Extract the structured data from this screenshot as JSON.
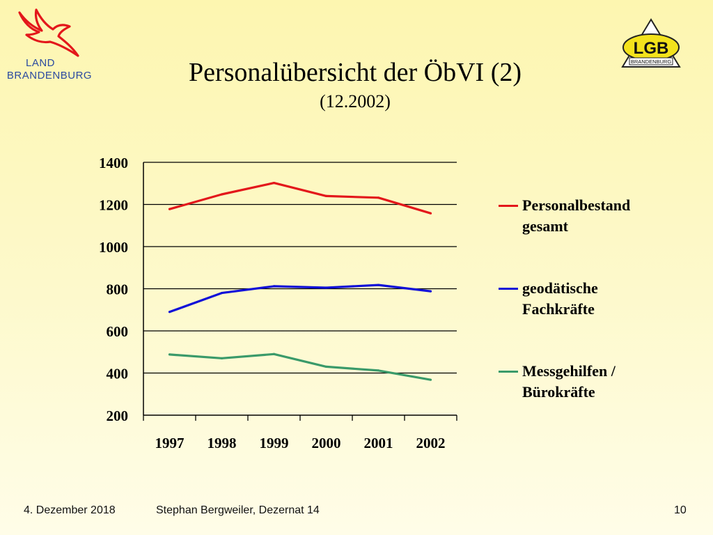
{
  "header": {
    "logo_left_line1": "LAND",
    "logo_left_line2": "BRANDENBURG",
    "logo_right_text": "LGB",
    "logo_right_subtext": "BRANDENBURG",
    "title": "Personalübersicht der ÖbVI (2)",
    "subtitle": "(12.2002)"
  },
  "colors": {
    "personal": "#e3171b",
    "geodaetisch": "#1010d8",
    "messgehilfen": "#3a9a6a",
    "eagle": "#e3171b",
    "brand_blue": "#2a4aa0",
    "lgb_yellow": "#f3e21c"
  },
  "chart_data": {
    "type": "line",
    "categories": [
      "1997",
      "1998",
      "1999",
      "2000",
      "2001",
      "2002"
    ],
    "ylim": [
      200,
      1400
    ],
    "yticks": [
      200,
      400,
      600,
      800,
      1000,
      1200,
      1400
    ],
    "grid": true,
    "legend_position": "right",
    "series": [
      {
        "name": "Personalbestand gesamt",
        "values": [
          1178,
          1248,
          1302,
          1240,
          1232,
          1158
        ],
        "color": "#e3171b"
      },
      {
        "name": "geodätische Fachkräfte",
        "values": [
          690,
          780,
          812,
          805,
          818,
          788
        ],
        "color": "#1010d8"
      },
      {
        "name": "Messgehilfen / Bürokräfte",
        "values": [
          488,
          470,
          490,
          430,
          412,
          368
        ],
        "color": "#3a9a6a"
      }
    ]
  },
  "legend": [
    {
      "label": "Personalbestand\ngesamt",
      "color": "#e3171b"
    },
    {
      "label": "geodätische\nFachkräfte",
      "color": "#1010d8"
    },
    {
      "label": "Messgehilfen /\nBürokräfte",
      "color": "#3a9a6a"
    }
  ],
  "footer": {
    "date": "4. Dezember 2018",
    "author": "Stephan Bergweiler, Dezernat 14",
    "page": "10"
  }
}
